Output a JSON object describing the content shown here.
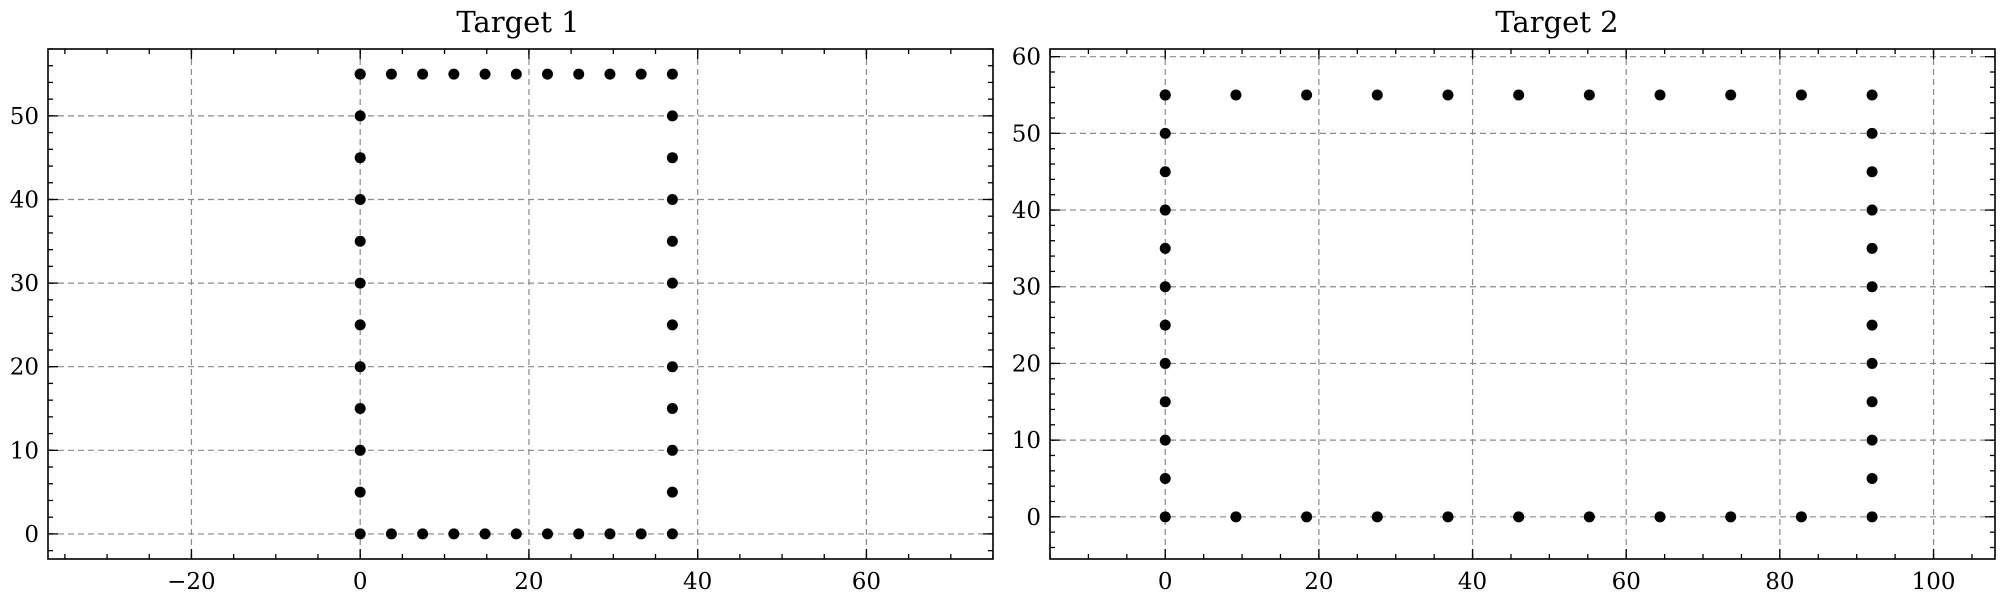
{
  "chart_data": [
    {
      "type": "scatter",
      "title": "Target 1",
      "xlabel": "",
      "ylabel": "",
      "xlim": [
        -37,
        75
      ],
      "ylim": [
        -3,
        58
      ],
      "xticks": [
        -20,
        0,
        20,
        40,
        60
      ],
      "yticks": [
        0,
        10,
        20,
        30,
        40,
        50
      ],
      "grid": true,
      "marker_color": "#000000",
      "series": [
        {
          "x": [
            0,
            3.7,
            7.4,
            11.1,
            14.8,
            18.5,
            22.2,
            25.9,
            29.6,
            33.3,
            37,
            0,
            0,
            0,
            0,
            0,
            0,
            0,
            0,
            0,
            0,
            0,
            37,
            37,
            37,
            37,
            37,
            37,
            37,
            37,
            37,
            37,
            0,
            3.7,
            7.4,
            11.1,
            14.8,
            18.5,
            22.2,
            25.9,
            29.6,
            33.3,
            37
          ],
          "y": [
            0,
            0,
            0,
            0,
            0,
            0,
            0,
            0,
            0,
            0,
            0,
            5,
            10,
            15,
            20,
            25,
            30,
            35,
            40,
            45,
            50,
            55,
            5,
            10,
            15,
            20,
            25,
            30,
            35,
            40,
            45,
            50,
            55,
            55,
            55,
            55,
            55,
            55,
            55,
            55,
            55,
            55,
            55
          ]
        }
      ]
    },
    {
      "type": "scatter",
      "title": "Target 2",
      "xlabel": "",
      "ylabel": "",
      "xlim": [
        -15,
        108
      ],
      "ylim": [
        -5.5,
        61
      ],
      "xticks": [
        0,
        20,
        40,
        60,
        80,
        100
      ],
      "yticks": [
        0,
        10,
        20,
        30,
        40,
        50,
        60
      ],
      "grid": true,
      "marker_color": "#000000",
      "series": [
        {
          "x": [
            0,
            9.2,
            18.4,
            27.6,
            36.8,
            46,
            55.2,
            64.4,
            73.6,
            82.8,
            92,
            0,
            0,
            0,
            0,
            0,
            0,
            0,
            0,
            0,
            0,
            0,
            92,
            92,
            92,
            92,
            92,
            92,
            92,
            92,
            92,
            92,
            0,
            9.2,
            18.4,
            27.6,
            36.8,
            46,
            55.2,
            64.4,
            73.6,
            82.8,
            92
          ],
          "y": [
            0,
            0,
            0,
            0,
            0,
            0,
            0,
            0,
            0,
            0,
            0,
            5,
            10,
            15,
            20,
            25,
            30,
            35,
            40,
            45,
            50,
            55,
            5,
            10,
            15,
            20,
            25,
            30,
            35,
            40,
            45,
            50,
            55,
            55,
            55,
            55,
            55,
            55,
            55,
            55,
            55,
            55,
            55
          ]
        }
      ]
    }
  ]
}
